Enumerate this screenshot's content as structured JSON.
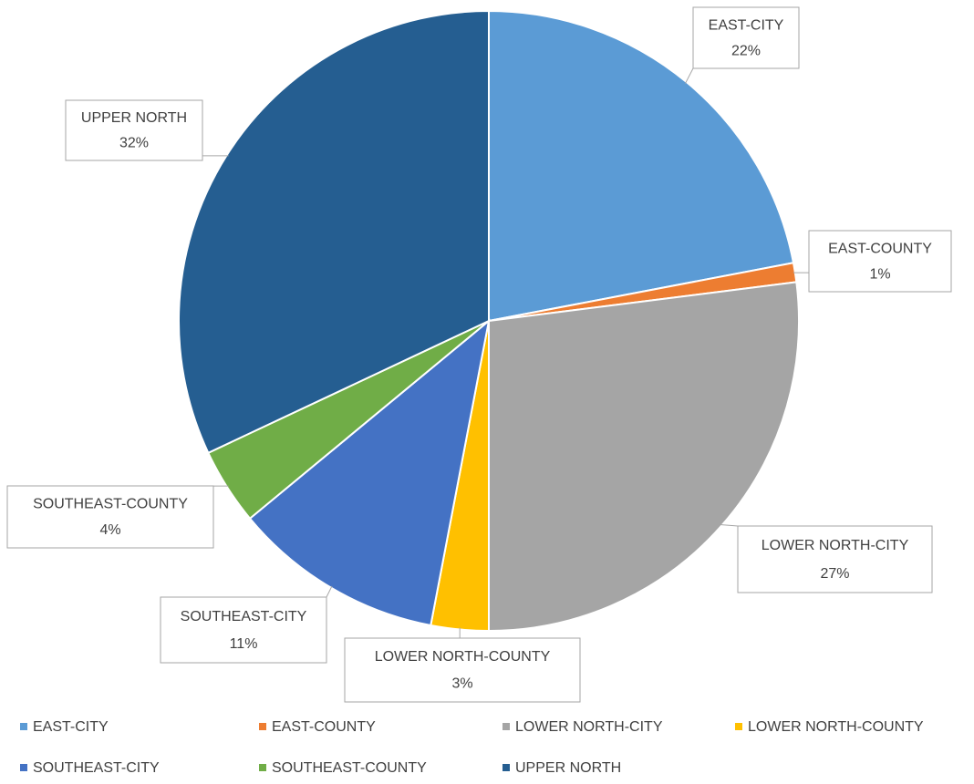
{
  "chart_data": {
    "type": "pie",
    "categories": [
      "EAST-CITY",
      "EAST-COUNTY",
      "LOWER NORTH-CITY",
      "LOWER NORTH-COUNTY",
      "SOUTHEAST-CITY",
      "SOUTHEAST-COUNTY",
      "UPPER NORTH"
    ],
    "values": [
      22,
      1,
      27,
      3,
      11,
      4,
      32
    ],
    "value_labels": [
      "22%",
      "1%",
      "27%",
      "3%",
      "11%",
      "4%",
      "32%"
    ],
    "colors": [
      "#5b9bd5",
      "#ed7d31",
      "#a5a5a5",
      "#ffc000",
      "#4472c4",
      "#70ad47",
      "#255e91"
    ],
    "legend": "bottom"
  }
}
